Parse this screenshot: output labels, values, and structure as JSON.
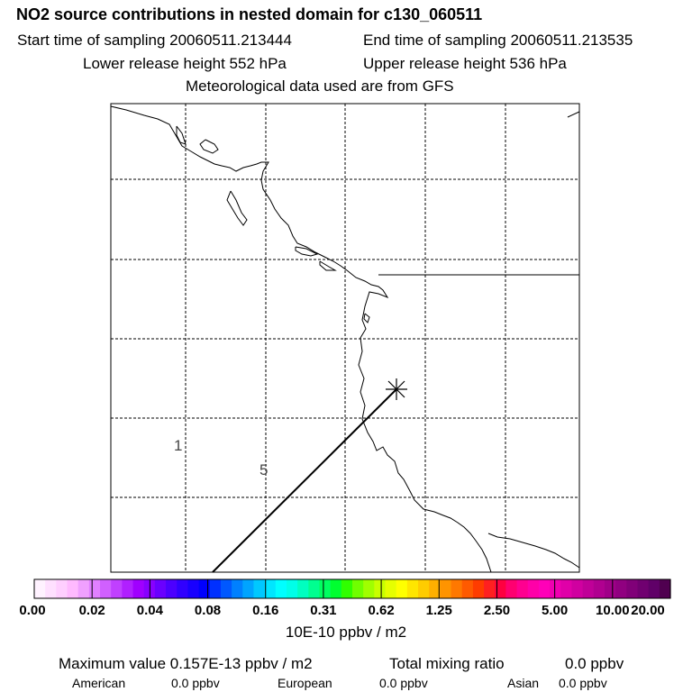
{
  "header": {
    "title": "NO2 source contributions in nested domain for c130_060511",
    "start_time": "Start time of sampling 20060511.213444",
    "end_time": "End time of sampling 20060511.213535",
    "lower_release": "Lower release height  552 hPa",
    "upper_release": "Upper release height  536 hPa",
    "met_data": "Meteorological data used are from GFS"
  },
  "map": {
    "contour_labels": [
      "1",
      "5"
    ],
    "release_marker_icon": "asterisk-icon",
    "colors": {
      "frame": "#000000",
      "grid": "#000000",
      "coast": "#000000"
    }
  },
  "colorbar": {
    "labels": [
      "0.00",
      "0.02",
      "0.04",
      "0.08",
      "0.16",
      "0.31",
      "0.62",
      "1.25",
      "2.50",
      "5.00",
      "10.00",
      "20.00"
    ],
    "units": "10E-10 ppbv / m2",
    "colors": [
      "#fff2ff",
      "#ffe0ff",
      "#ffcfff",
      "#ffbaff",
      "#f0a0ff",
      "#e080ff",
      "#d060ff",
      "#c040ff",
      "#b020ff",
      "#a000ff",
      "#8800ff",
      "#6a00ff",
      "#4c00ff",
      "#3000ff",
      "#1800ff",
      "#0000ff",
      "#0030ff",
      "#0058ff",
      "#0080ff",
      "#00a4ff",
      "#00c8ff",
      "#00e6ff",
      "#00ffff",
      "#00ffe8",
      "#00ffc0",
      "#00ff90",
      "#00ff60",
      "#00ff30",
      "#30ff00",
      "#70ff00",
      "#a0ff00",
      "#c8ff00",
      "#e6ff00",
      "#ffff00",
      "#ffe600",
      "#ffcc00",
      "#ffb000",
      "#ff9400",
      "#ff7800",
      "#ff5a00",
      "#ff3c00",
      "#ff2020",
      "#ff0040",
      "#ff0070",
      "#ff0090",
      "#ff00a8",
      "#ff00b8",
      "#f000b0",
      "#e000a8",
      "#d000a0",
      "#c00098",
      "#b00090",
      "#a00088",
      "#900080",
      "#800078",
      "#700070",
      "#600068",
      "#500050"
    ]
  },
  "summary": {
    "max_value": "Maximum value  0.157E-13 ppbv / m2",
    "total_label": "Total mixing ratio",
    "total_value": "0.0 ppbv",
    "regions": [
      {
        "name": "American",
        "value": "0.0 ppbv"
      },
      {
        "name": "European",
        "value": "0.0 ppbv"
      },
      {
        "name": "Asian",
        "value": "0.0 ppbv"
      }
    ]
  }
}
